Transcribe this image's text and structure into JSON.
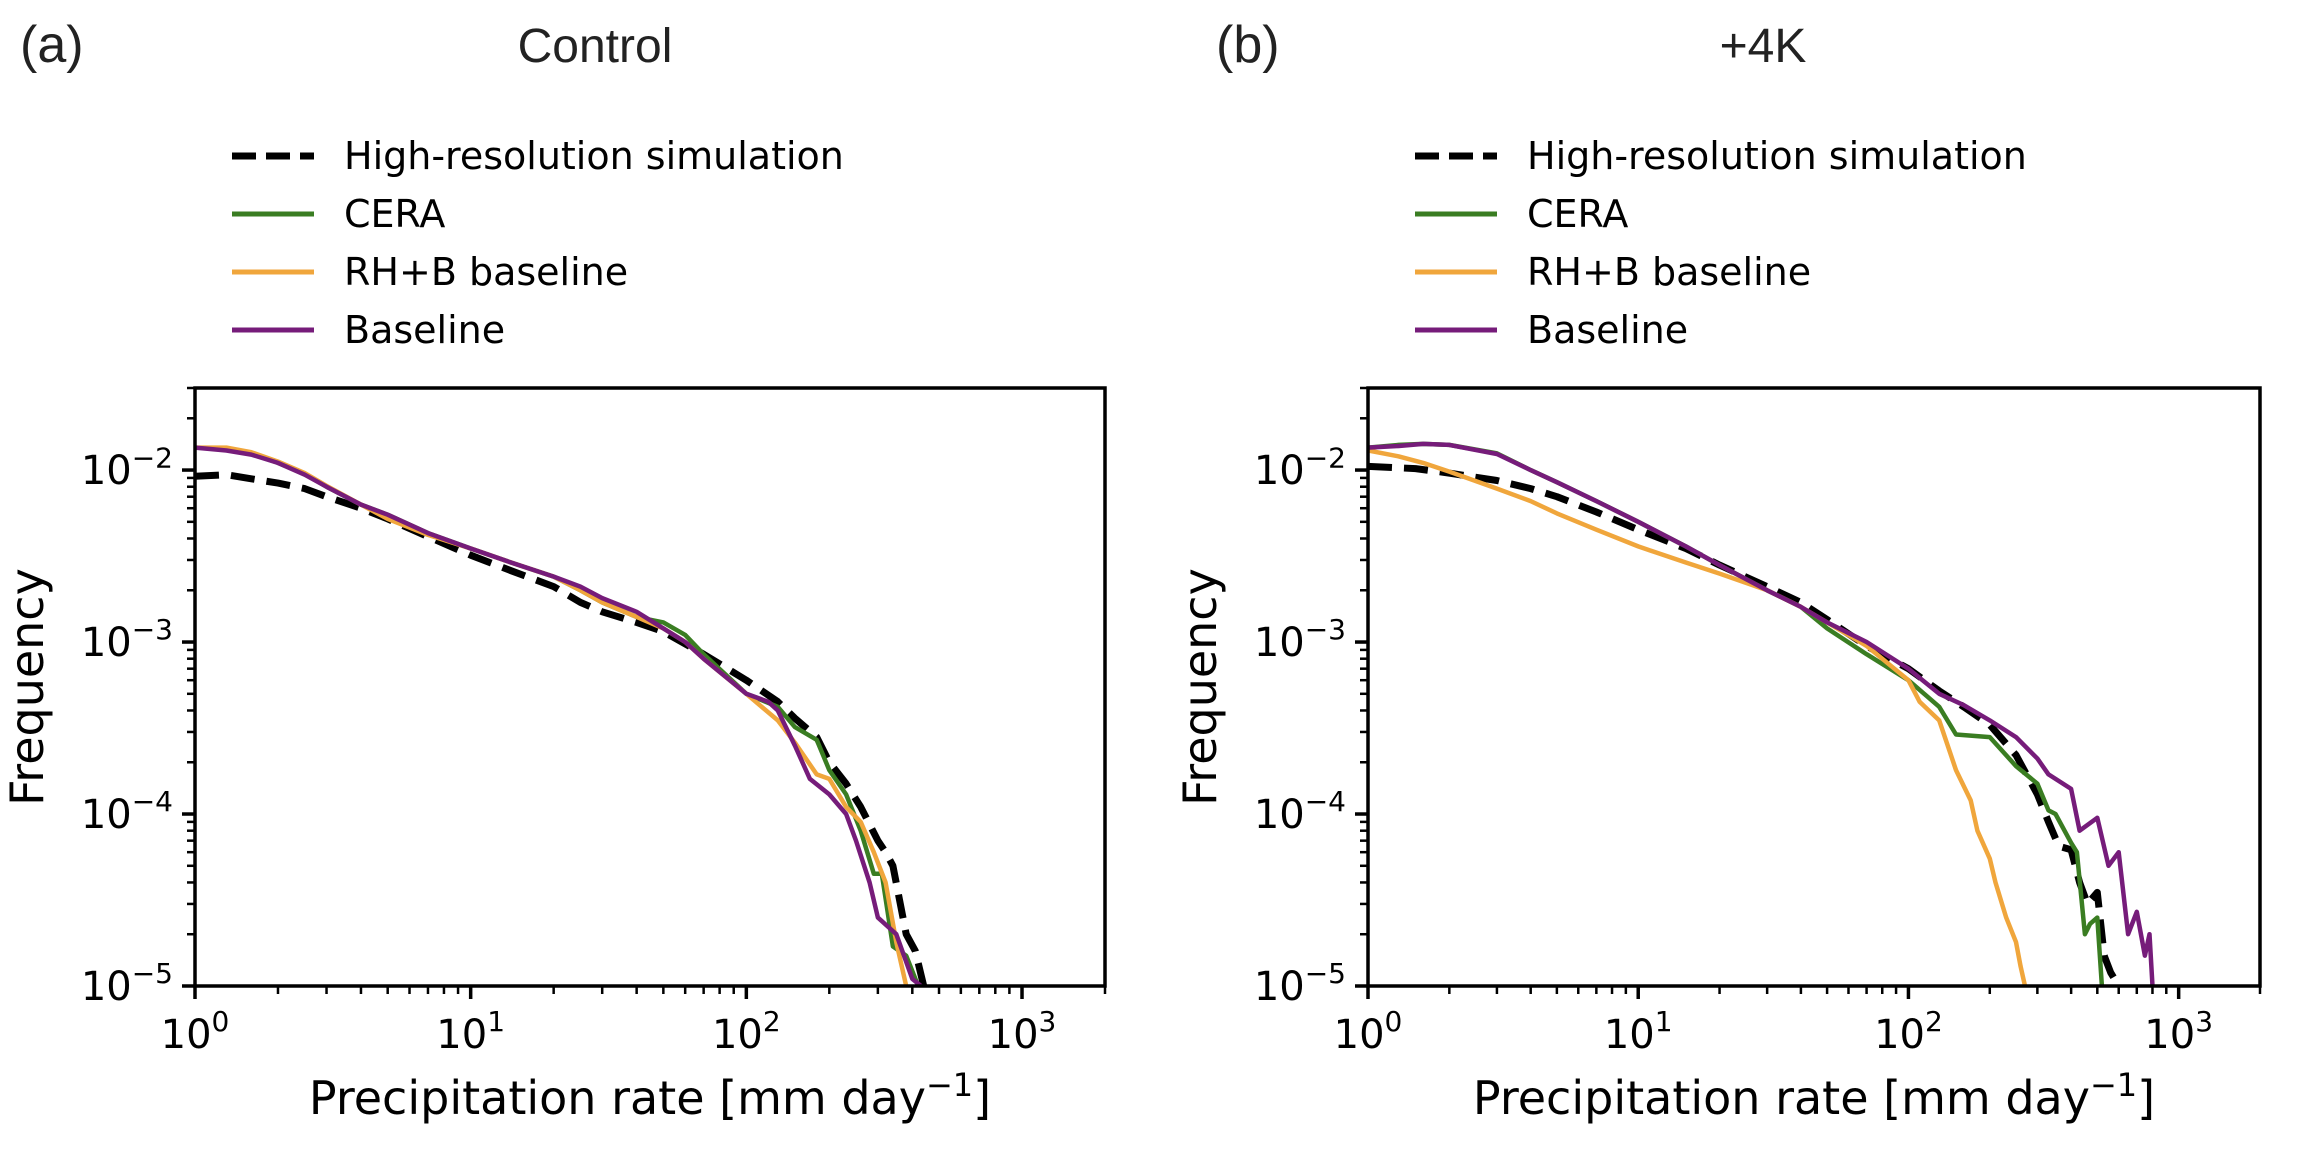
{
  "chart_data": [
    {
      "type": "line",
      "panel_label": "(a)",
      "title": "Control",
      "xlabel": "Precipitation rate [mm day",
      "xlabel_sup": "−1",
      "xlabel_end": "]",
      "ylabel": "Frequency",
      "xscale": "log",
      "yscale": "log",
      "xlim": [
        1,
        2000
      ],
      "ylim": [
        1e-05,
        0.03
      ],
      "xticks": [
        {
          "base": "10",
          "exp": "0",
          "value": 1
        },
        {
          "base": "10",
          "exp": "1",
          "value": 10
        },
        {
          "base": "10",
          "exp": "2",
          "value": 100
        },
        {
          "base": "10",
          "exp": "3",
          "value": 1000
        }
      ],
      "yticks": [
        {
          "base": "10",
          "exp": "−2",
          "value": 0.01
        },
        {
          "base": "10",
          "exp": "−3",
          "value": 0.001
        },
        {
          "base": "10",
          "exp": "−4",
          "value": 0.0001
        },
        {
          "base": "10",
          "exp": "−5",
          "value": 1e-05
        }
      ],
      "legend": {
        "placement": "above"
      },
      "series": [
        {
          "name": "High-resolution simulation",
          "color": "#000000",
          "style": "dashed",
          "x": [
            1,
            1.3,
            1.6,
            2,
            2.5,
            3,
            4,
            5,
            7,
            10,
            14,
            20,
            25,
            30,
            40,
            50,
            70,
            100,
            130,
            150,
            180,
            200,
            230,
            260,
            300,
            320,
            340,
            380,
            410,
            440
          ],
          "y": [
            0.0092,
            0.0094,
            0.0089,
            0.0084,
            0.0078,
            0.007,
            0.006,
            0.0052,
            0.0041,
            0.0032,
            0.0026,
            0.0021,
            0.0017,
            0.0015,
            0.0013,
            0.00115,
            0.00085,
            0.0006,
            0.00045,
            0.00036,
            0.00028,
            0.0002,
            0.00015,
            0.00011,
            7e-05,
            6e-05,
            5e-05,
            2e-05,
            1.6e-05,
            1e-05
          ]
        },
        {
          "name": "CERA",
          "color": "#3a7d22",
          "style": "solid",
          "x": [
            1,
            1.3,
            1.6,
            2,
            2.5,
            3,
            4,
            5,
            7,
            10,
            14,
            20,
            25,
            30,
            40,
            50,
            60,
            70,
            100,
            130,
            150,
            180,
            200,
            230,
            260,
            290,
            310,
            340,
            380,
            420,
            430
          ],
          "y": [
            0.0135,
            0.0133,
            0.0125,
            0.011,
            0.0095,
            0.008,
            0.0063,
            0.0055,
            0.0043,
            0.0035,
            0.0029,
            0.0024,
            0.002,
            0.0017,
            0.0014,
            0.0013,
            0.0011,
            0.00085,
            0.0005,
            0.00042,
            0.00032,
            0.00027,
            0.00018,
            0.00013,
            8e-05,
            4.5e-05,
            4.5e-05,
            1.7e-05,
            1.5e-05,
            1e-05,
            1e-05
          ]
        },
        {
          "name": "RH+B baseline",
          "color": "#f0a63c",
          "style": "solid",
          "x": [
            1,
            1.3,
            1.6,
            2,
            2.5,
            3,
            4,
            5,
            7,
            10,
            14,
            20,
            25,
            30,
            40,
            50,
            60,
            70,
            100,
            130,
            150,
            180,
            200,
            230,
            260,
            290,
            320,
            350,
            380
          ],
          "y": [
            0.0135,
            0.0135,
            0.0127,
            0.0112,
            0.0096,
            0.0081,
            0.0063,
            0.0052,
            0.0042,
            0.0035,
            0.0029,
            0.0024,
            0.002,
            0.0017,
            0.0014,
            0.0012,
            0.001,
            0.0008,
            0.0005,
            0.00035,
            0.00026,
            0.00017,
            0.00016,
            0.00011,
            9e-05,
            6e-05,
            4e-05,
            1.8e-05,
            1e-05
          ]
        },
        {
          "name": "Baseline",
          "color": "#761c7a",
          "style": "solid",
          "x": [
            1,
            1.3,
            1.6,
            2,
            2.5,
            3,
            4,
            5,
            7,
            10,
            14,
            20,
            25,
            30,
            40,
            50,
            60,
            70,
            100,
            120,
            130,
            150,
            170,
            200,
            230,
            250,
            280,
            300,
            350,
            400,
            430
          ],
          "y": [
            0.0135,
            0.013,
            0.0123,
            0.011,
            0.0094,
            0.008,
            0.0063,
            0.0055,
            0.0043,
            0.0035,
            0.0029,
            0.0024,
            0.0021,
            0.0018,
            0.0015,
            0.0012,
            0.001,
            0.0008,
            0.0005,
            0.00045,
            0.0004,
            0.00025,
            0.00016,
            0.00013,
            0.0001,
            7e-05,
            4e-05,
            2.5e-05,
            2e-05,
            1.1e-05,
            1e-05
          ]
        }
      ]
    },
    {
      "type": "line",
      "panel_label": "(b)",
      "title": "+4K",
      "xlabel": "Precipitation rate [mm day",
      "xlabel_sup": "−1",
      "xlabel_end": "]",
      "ylabel": "Frequency",
      "xscale": "log",
      "yscale": "log",
      "xlim": [
        1,
        2000
      ],
      "ylim": [
        1e-05,
        0.03
      ],
      "xticks": [
        {
          "base": "10",
          "exp": "0",
          "value": 1
        },
        {
          "base": "10",
          "exp": "1",
          "value": 10
        },
        {
          "base": "10",
          "exp": "2",
          "value": 100
        },
        {
          "base": "10",
          "exp": "3",
          "value": 1000
        }
      ],
      "yticks": [
        {
          "base": "10",
          "exp": "−2",
          "value": 0.01
        },
        {
          "base": "10",
          "exp": "−3",
          "value": 0.001
        },
        {
          "base": "10",
          "exp": "−4",
          "value": 0.0001
        },
        {
          "base": "10",
          "exp": "−5",
          "value": 1e-05
        }
      ],
      "legend": {
        "placement": "above"
      },
      "series": [
        {
          "name": "High-resolution simulation",
          "color": "#000000",
          "style": "dashed",
          "x": [
            1,
            1.5,
            2,
            3,
            4,
            5,
            7,
            10,
            15,
            20,
            30,
            40,
            50,
            70,
            100,
            130,
            160,
            200,
            250,
            300,
            330,
            360,
            400,
            430,
            460,
            500,
            530,
            560,
            600
          ],
          "y": [
            0.0105,
            0.0102,
            0.0096,
            0.0087,
            0.0078,
            0.007,
            0.0057,
            0.0045,
            0.0035,
            0.0028,
            0.0021,
            0.0017,
            0.00135,
            0.00095,
            0.0007,
            0.00052,
            0.00042,
            0.00033,
            0.00022,
            0.00013,
            9e-05,
            6.5e-05,
            6.2e-05,
            4e-05,
            3e-05,
            3.5e-05,
            1.5e-05,
            1.2e-05,
            1e-05
          ]
        },
        {
          "name": "CERA",
          "color": "#3a7d22",
          "style": "solid",
          "x": [
            1,
            1.3,
            1.6,
            2,
            3,
            4,
            5,
            7,
            10,
            15,
            20,
            30,
            40,
            50,
            70,
            100,
            130,
            150,
            200,
            250,
            300,
            330,
            350,
            400,
            420,
            450,
            470,
            500,
            520
          ],
          "y": [
            0.0135,
            0.014,
            0.0142,
            0.014,
            0.0125,
            0.01,
            0.0085,
            0.0066,
            0.005,
            0.0036,
            0.0028,
            0.002,
            0.0016,
            0.0012,
            0.00085,
            0.0006,
            0.00042,
            0.00029,
            0.00028,
            0.00019,
            0.00015,
            0.000105,
            0.0001,
            6.8e-05,
            6e-05,
            2e-05,
            2.3e-05,
            2.5e-05,
            1e-05
          ]
        },
        {
          "name": "RH+B baseline",
          "color": "#f0a63c",
          "style": "solid",
          "x": [
            1,
            1.3,
            1.6,
            2,
            3,
            4,
            5,
            7,
            10,
            15,
            20,
            30,
            40,
            50,
            70,
            100,
            110,
            130,
            150,
            170,
            180,
            200,
            210,
            230,
            250,
            260,
            270
          ],
          "y": [
            0.013,
            0.012,
            0.011,
            0.0098,
            0.0078,
            0.0066,
            0.0056,
            0.0045,
            0.0036,
            0.0029,
            0.0025,
            0.002,
            0.0016,
            0.0013,
            0.00095,
            0.0006,
            0.00045,
            0.00035,
            0.00018,
            0.00012,
            8e-05,
            5.5e-05,
            4e-05,
            2.5e-05,
            1.8e-05,
            1.3e-05,
            1e-05
          ]
        },
        {
          "name": "Baseline",
          "color": "#761c7a",
          "style": "solid",
          "x": [
            1,
            1.3,
            1.6,
            2,
            3,
            4,
            5,
            7,
            10,
            15,
            20,
            30,
            40,
            50,
            70,
            100,
            130,
            160,
            200,
            250,
            300,
            330,
            400,
            430,
            500,
            550,
            600,
            650,
            700,
            750,
            780,
            800
          ],
          "y": [
            0.0135,
            0.0138,
            0.0142,
            0.014,
            0.0124,
            0.01,
            0.0085,
            0.0066,
            0.005,
            0.0036,
            0.0028,
            0.002,
            0.0016,
            0.0013,
            0.001,
            0.0007,
            0.0005,
            0.00043,
            0.00035,
            0.00028,
            0.00021,
            0.00017,
            0.00014,
            8e-05,
            9.5e-05,
            5e-05,
            6e-05,
            2e-05,
            2.7e-05,
            1.5e-05,
            2e-05,
            1e-05
          ]
        }
      ]
    }
  ]
}
